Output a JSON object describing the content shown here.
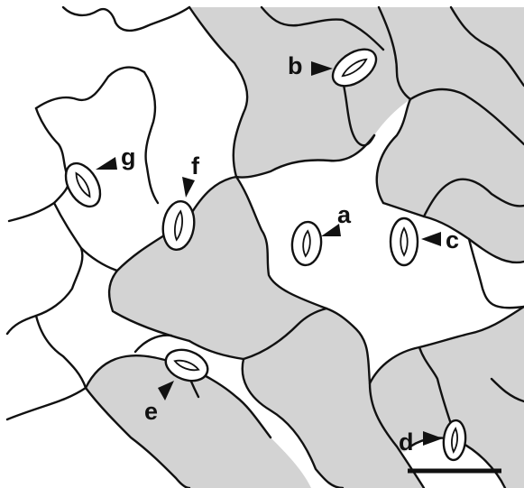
{
  "figure": {
    "colors": {
      "shaded_cell": "#d3d3d3",
      "clear_cell": "#ffffff",
      "wall": "#111111"
    },
    "stomata": [
      {
        "label": "a"
      },
      {
        "label": "b"
      },
      {
        "label": "c"
      },
      {
        "label": "d"
      },
      {
        "label": "e"
      },
      {
        "label": "f"
      },
      {
        "label": "g"
      }
    ],
    "scale_bar": {
      "label": ""
    }
  }
}
